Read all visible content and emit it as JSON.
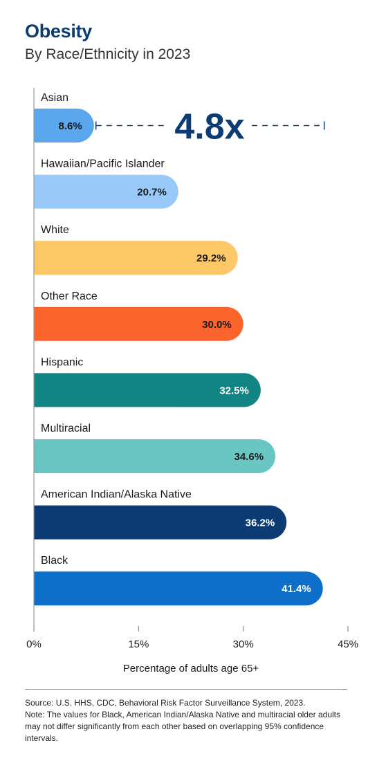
{
  "header": {
    "title": "Obesity",
    "subtitle": "By Race/Ethnicity in 2023"
  },
  "chart_data": {
    "type": "bar",
    "orientation": "horizontal",
    "title": "Obesity",
    "subtitle": "By Race/Ethnicity in 2023",
    "xlabel": "Percentage of adults age 65+",
    "ylabel": "",
    "xlim": [
      0,
      45
    ],
    "xticks": [
      "0%",
      "15%",
      "30%",
      "45%"
    ],
    "xtick_values": [
      0,
      15,
      30,
      45
    ],
    "grid": false,
    "legend": "none",
    "categories": [
      "Asian",
      "Hawaiian/Pacific Islander",
      "White",
      "Other Race",
      "Hispanic",
      "Multiracial",
      "American Indian/Alaska Native",
      "Black"
    ],
    "values": [
      8.6,
      20.7,
      29.2,
      30.0,
      32.5,
      34.6,
      36.2,
      41.4
    ],
    "value_labels": [
      "8.6%",
      "20.7%",
      "29.2%",
      "30.0%",
      "32.5%",
      "34.6%",
      "36.2%",
      "41.4%"
    ],
    "colors": [
      "#5aa7ee",
      "#99c9f8",
      "#fdc867",
      "#fb642d",
      "#128483",
      "#69c6c3",
      "#0d3b73",
      "#0d6fc9"
    ],
    "label_colors": [
      "#1a1a1a",
      "#1a1a1a",
      "#1a1a1a",
      "#1a1a1a",
      "#ffffff",
      "#1a1a1a",
      "#ffffff",
      "#ffffff"
    ],
    "annotation": {
      "text": "4.8x",
      "from_value": 8.6,
      "to_value": 41.4,
      "color": "#0d3b73"
    }
  },
  "footer": {
    "source": "Source: U.S. HHS, CDC, Behavioral Risk Factor Surveillance System, 2023.",
    "note": "Note: The values for Black, American Indian/Alaska Native and multiracial older adults may not differ significantly from each other based on overlapping 95% confidence intervals."
  }
}
